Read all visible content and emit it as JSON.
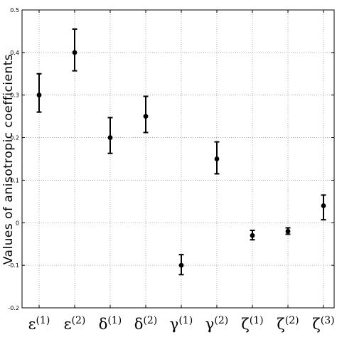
{
  "chart_data": {
    "type": "scatter",
    "title": "",
    "xlabel": "",
    "ylabel": "Values of anisotropic coefficients",
    "categories": [
      {
        "base": "ε",
        "sup": "(1)"
      },
      {
        "base": "ε",
        "sup": "(2)"
      },
      {
        "base": "δ",
        "sup": "(1)"
      },
      {
        "base": "δ",
        "sup": "(2)"
      },
      {
        "base": "γ",
        "sup": "(1)"
      },
      {
        "base": "γ",
        "sup": "(2)"
      },
      {
        "base": "ζ",
        "sup": "(1)"
      },
      {
        "base": "ζ",
        "sup": "(2)"
      },
      {
        "base": "ζ",
        "sup": "(3)"
      }
    ],
    "values": [
      0.3,
      0.4,
      0.2,
      0.25,
      -0.1,
      0.15,
      -0.03,
      -0.02,
      0.04
    ],
    "error_low": [
      0.26,
      0.357,
      0.163,
      0.212,
      -0.122,
      0.115,
      -0.04,
      -0.027,
      0.007
    ],
    "error_high": [
      0.35,
      0.455,
      0.247,
      0.297,
      -0.075,
      0.19,
      -0.018,
      -0.012,
      0.065
    ],
    "ylim": [
      -0.2,
      0.5
    ],
    "yticks": [
      "-0.2",
      "-0.1",
      "0",
      "0.1",
      "0.2",
      "0.3",
      "0.4",
      "0.5"
    ],
    "grid": true,
    "marker_color": "#000000",
    "grid_color": "#9a9a9a"
  }
}
